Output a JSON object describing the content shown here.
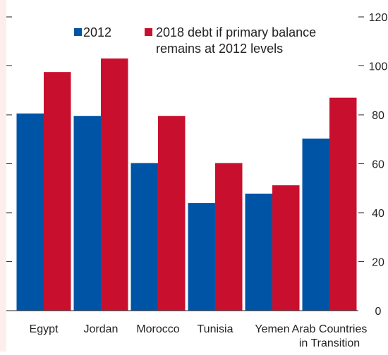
{
  "chart_data": {
    "type": "bar",
    "categories": [
      "Egypt",
      "Jordan",
      "Morocco",
      "Tunisia",
      "Yemen",
      "Arab Countries in Transition"
    ],
    "category_lines": [
      [
        "Egypt"
      ],
      [
        "Jordan"
      ],
      [
        "Morocco"
      ],
      [
        "Tunisia"
      ],
      [
        "Yemen"
      ],
      [
        "Arab Countries",
        "in Transition"
      ]
    ],
    "series": [
      {
        "name": "2012",
        "values": [
          80.5,
          79.5,
          60.3,
          44.0,
          47.8,
          70.3
        ],
        "color": "#0054a6"
      },
      {
        "name": "2018 debt if primary balance remains at 2012 levels",
        "values": [
          97.5,
          103.0,
          79.5,
          60.3,
          51.2,
          87.0
        ],
        "color": "#c8102e"
      }
    ],
    "legend_lines": [
      [
        "2012"
      ],
      [
        "2018 debt if primary balance",
        "remains at 2012 levels"
      ]
    ],
    "yticks": [
      0,
      20,
      40,
      60,
      80,
      100,
      120
    ],
    "ylim": [
      0,
      120
    ],
    "axis_side": "right",
    "title": "",
    "xlabel": "",
    "ylabel": "",
    "grid": false,
    "legend_position": "top"
  }
}
